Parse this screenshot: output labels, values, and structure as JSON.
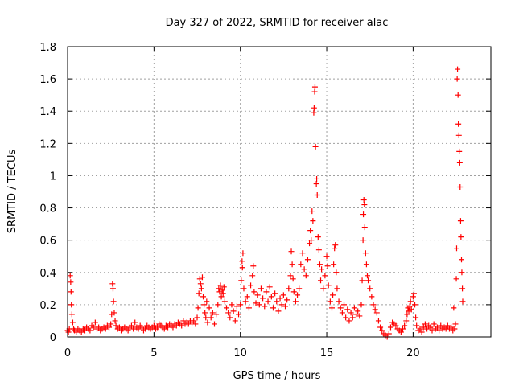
{
  "chart_data": {
    "type": "scatter",
    "title": "Day 327 of 2022, SRMTID for receiver alac",
    "xlabel": "GPS time / hours",
    "ylabel": "SRMTID / TECUs",
    "xlim": [
      0,
      24.5
    ],
    "ylim": [
      0,
      1.8
    ],
    "xticks": [
      0,
      5,
      10,
      15,
      20
    ],
    "xtick_labels": [
      "0",
      "5",
      "10",
      "15",
      "20"
    ],
    "yticks": [
      0,
      0.2,
      0.4,
      0.6,
      0.8,
      1.0,
      1.2,
      1.4,
      1.6,
      1.8
    ],
    "ytick_labels": [
      "0",
      "0.2",
      "0.4",
      "0.6",
      "0.8",
      "1",
      "1.2",
      "1.4",
      "1.6",
      "1.8"
    ],
    "grid": true,
    "marker": "+",
    "marker_color": "#ff0000",
    "series": [
      {
        "name": "SRMTID",
        "points": [
          [
            0.0,
            0.04
          ],
          [
            0.05,
            0.03
          ],
          [
            0.1,
            0.05
          ],
          [
            0.15,
            0.38
          ],
          [
            0.18,
            0.34
          ],
          [
            0.2,
            0.28
          ],
          [
            0.22,
            0.2
          ],
          [
            0.25,
            0.14
          ],
          [
            0.3,
            0.09
          ],
          [
            0.35,
            0.05
          ],
          [
            0.4,
            0.04
          ],
          [
            0.5,
            0.03
          ],
          [
            0.6,
            0.05
          ],
          [
            0.7,
            0.04
          ],
          [
            0.8,
            0.03
          ],
          [
            0.9,
            0.05
          ],
          [
            1.0,
            0.04
          ],
          [
            1.1,
            0.06
          ],
          [
            1.2,
            0.05
          ],
          [
            1.3,
            0.04
          ],
          [
            1.4,
            0.07
          ],
          [
            1.5,
            0.06
          ],
          [
            1.6,
            0.09
          ],
          [
            1.7,
            0.05
          ],
          [
            1.8,
            0.06
          ],
          [
            1.9,
            0.04
          ],
          [
            2.0,
            0.05
          ],
          [
            2.1,
            0.06
          ],
          [
            2.2,
            0.05
          ],
          [
            2.3,
            0.07
          ],
          [
            2.4,
            0.06
          ],
          [
            2.5,
            0.08
          ],
          [
            2.55,
            0.14
          ],
          [
            2.6,
            0.33
          ],
          [
            2.63,
            0.3
          ],
          [
            2.66,
            0.22
          ],
          [
            2.7,
            0.15
          ],
          [
            2.75,
            0.1
          ],
          [
            2.8,
            0.07
          ],
          [
            2.9,
            0.05
          ],
          [
            3.0,
            0.06
          ],
          [
            3.1,
            0.04
          ],
          [
            3.2,
            0.05
          ],
          [
            3.3,
            0.06
          ],
          [
            3.4,
            0.05
          ],
          [
            3.5,
            0.04
          ],
          [
            3.6,
            0.06
          ],
          [
            3.7,
            0.07
          ],
          [
            3.8,
            0.05
          ],
          [
            3.9,
            0.09
          ],
          [
            4.0,
            0.06
          ],
          [
            4.1,
            0.05
          ],
          [
            4.2,
            0.07
          ],
          [
            4.3,
            0.06
          ],
          [
            4.4,
            0.04
          ],
          [
            4.5,
            0.05
          ],
          [
            4.6,
            0.07
          ],
          [
            4.7,
            0.06
          ],
          [
            4.8,
            0.05
          ],
          [
            4.9,
            0.06
          ],
          [
            5.0,
            0.07
          ],
          [
            5.1,
            0.05
          ],
          [
            5.2,
            0.06
          ],
          [
            5.3,
            0.08
          ],
          [
            5.4,
            0.07
          ],
          [
            5.5,
            0.06
          ],
          [
            5.6,
            0.05
          ],
          [
            5.7,
            0.07
          ],
          [
            5.8,
            0.06
          ],
          [
            5.9,
            0.08
          ],
          [
            6.0,
            0.07
          ],
          [
            6.1,
            0.06
          ],
          [
            6.2,
            0.08
          ],
          [
            6.3,
            0.07
          ],
          [
            6.4,
            0.09
          ],
          [
            6.5,
            0.08
          ],
          [
            6.6,
            0.07
          ],
          [
            6.7,
            0.1
          ],
          [
            6.8,
            0.08
          ],
          [
            6.9,
            0.09
          ],
          [
            7.0,
            0.08
          ],
          [
            7.1,
            0.1
          ],
          [
            7.2,
            0.09
          ],
          [
            7.3,
            0.1
          ],
          [
            7.4,
            0.08
          ],
          [
            7.5,
            0.12
          ],
          [
            7.55,
            0.18
          ],
          [
            7.6,
            0.27
          ],
          [
            7.65,
            0.36
          ],
          [
            7.7,
            0.33
          ],
          [
            7.75,
            0.3
          ],
          [
            7.8,
            0.37
          ],
          [
            7.85,
            0.25
          ],
          [
            7.9,
            0.2
          ],
          [
            7.95,
            0.15
          ],
          [
            8.0,
            0.12
          ],
          [
            8.05,
            0.22
          ],
          [
            8.1,
            0.09
          ],
          [
            8.2,
            0.18
          ],
          [
            8.3,
            0.12
          ],
          [
            8.4,
            0.15
          ],
          [
            8.5,
            0.08
          ],
          [
            8.6,
            0.14
          ],
          [
            8.7,
            0.2
          ],
          [
            8.75,
            0.3
          ],
          [
            8.8,
            0.28
          ],
          [
            8.85,
            0.32
          ],
          [
            8.9,
            0.25
          ],
          [
            8.95,
            0.29
          ],
          [
            9.0,
            0.27
          ],
          [
            9.05,
            0.31
          ],
          [
            9.1,
            0.22
          ],
          [
            9.2,
            0.18
          ],
          [
            9.3,
            0.15
          ],
          [
            9.4,
            0.12
          ],
          [
            9.5,
            0.2
          ],
          [
            9.6,
            0.16
          ],
          [
            9.7,
            0.1
          ],
          [
            9.8,
            0.19
          ],
          [
            9.9,
            0.14
          ],
          [
            10.0,
            0.2
          ],
          [
            10.05,
            0.35
          ],
          [
            10.1,
            0.47
          ],
          [
            10.12,
            0.43
          ],
          [
            10.15,
            0.52
          ],
          [
            10.2,
            0.3
          ],
          [
            10.3,
            0.22
          ],
          [
            10.4,
            0.25
          ],
          [
            10.5,
            0.18
          ],
          [
            10.6,
            0.32
          ],
          [
            10.7,
            0.38
          ],
          [
            10.75,
            0.44
          ],
          [
            10.8,
            0.28
          ],
          [
            10.9,
            0.21
          ],
          [
            11.0,
            0.26
          ],
          [
            11.1,
            0.2
          ],
          [
            11.2,
            0.3
          ],
          [
            11.3,
            0.24
          ],
          [
            11.4,
            0.19
          ],
          [
            11.5,
            0.28
          ],
          [
            11.6,
            0.22
          ],
          [
            11.7,
            0.31
          ],
          [
            11.8,
            0.25
          ],
          [
            11.9,
            0.18
          ],
          [
            12.0,
            0.27
          ],
          [
            12.1,
            0.22
          ],
          [
            12.2,
            0.16
          ],
          [
            12.3,
            0.24
          ],
          [
            12.4,
            0.2
          ],
          [
            12.5,
            0.26
          ],
          [
            12.6,
            0.19
          ],
          [
            12.7,
            0.23
          ],
          [
            12.8,
            0.3
          ],
          [
            12.9,
            0.38
          ],
          [
            12.95,
            0.53
          ],
          [
            13.0,
            0.45
          ],
          [
            13.05,
            0.36
          ],
          [
            13.1,
            0.28
          ],
          [
            13.2,
            0.22
          ],
          [
            13.3,
            0.26
          ],
          [
            13.4,
            0.3
          ],
          [
            13.5,
            0.45
          ],
          [
            13.6,
            0.52
          ],
          [
            13.7,
            0.42
          ],
          [
            13.8,
            0.38
          ],
          [
            13.9,
            0.48
          ],
          [
            14.0,
            0.58
          ],
          [
            14.05,
            0.66
          ],
          [
            14.1,
            0.6
          ],
          [
            14.15,
            0.78
          ],
          [
            14.2,
            0.72
          ],
          [
            14.25,
            1.39
          ],
          [
            14.27,
            1.42
          ],
          [
            14.3,
            1.52
          ],
          [
            14.32,
            1.55
          ],
          [
            14.35,
            1.18
          ],
          [
            14.4,
            0.95
          ],
          [
            14.42,
            0.98
          ],
          [
            14.45,
            0.88
          ],
          [
            14.5,
            0.62
          ],
          [
            14.55,
            0.54
          ],
          [
            14.6,
            0.45
          ],
          [
            14.65,
            0.35
          ],
          [
            14.7,
            0.42
          ],
          [
            14.8,
            0.3
          ],
          [
            14.9,
            0.38
          ],
          [
            15.0,
            0.5
          ],
          [
            15.05,
            0.44
          ],
          [
            15.1,
            0.32
          ],
          [
            15.2,
            0.22
          ],
          [
            15.3,
            0.18
          ],
          [
            15.35,
            0.26
          ],
          [
            15.4,
            0.45
          ],
          [
            15.45,
            0.55
          ],
          [
            15.5,
            0.57
          ],
          [
            15.55,
            0.4
          ],
          [
            15.6,
            0.3
          ],
          [
            15.7,
            0.22
          ],
          [
            15.8,
            0.18
          ],
          [
            15.9,
            0.15
          ],
          [
            16.0,
            0.2
          ],
          [
            16.1,
            0.12
          ],
          [
            16.2,
            0.17
          ],
          [
            16.3,
            0.1
          ],
          [
            16.4,
            0.15
          ],
          [
            16.5,
            0.12
          ],
          [
            16.6,
            0.18
          ],
          [
            16.7,
            0.14
          ],
          [
            16.8,
            0.16
          ],
          [
            16.9,
            0.13
          ],
          [
            17.0,
            0.2
          ],
          [
            17.05,
            0.35
          ],
          [
            17.1,
            0.6
          ],
          [
            17.12,
            0.76
          ],
          [
            17.15,
            0.85
          ],
          [
            17.18,
            0.82
          ],
          [
            17.2,
            0.68
          ],
          [
            17.25,
            0.52
          ],
          [
            17.3,
            0.45
          ],
          [
            17.35,
            0.38
          ],
          [
            17.4,
            0.35
          ],
          [
            17.5,
            0.3
          ],
          [
            17.6,
            0.25
          ],
          [
            17.7,
            0.2
          ],
          [
            17.8,
            0.17
          ],
          [
            17.9,
            0.15
          ],
          [
            18.0,
            0.1
          ],
          [
            18.1,
            0.06
          ],
          [
            18.2,
            0.04
          ],
          [
            18.3,
            0.02
          ],
          [
            18.4,
            0.01
          ],
          [
            18.5,
            0.0
          ],
          [
            18.6,
            0.02
          ],
          [
            18.7,
            0.06
          ],
          [
            18.8,
            0.09
          ],
          [
            18.9,
            0.08
          ],
          [
            19.0,
            0.07
          ],
          [
            19.1,
            0.05
          ],
          [
            19.2,
            0.04
          ],
          [
            19.3,
            0.03
          ],
          [
            19.4,
            0.05
          ],
          [
            19.5,
            0.07
          ],
          [
            19.6,
            0.1
          ],
          [
            19.65,
            0.14
          ],
          [
            19.7,
            0.18
          ],
          [
            19.75,
            0.16
          ],
          [
            19.8,
            0.19
          ],
          [
            19.85,
            0.22
          ],
          [
            19.9,
            0.17
          ],
          [
            20.0,
            0.25
          ],
          [
            20.05,
            0.27
          ],
          [
            20.1,
            0.2
          ],
          [
            20.15,
            0.12
          ],
          [
            20.2,
            0.07
          ],
          [
            20.3,
            0.04
          ],
          [
            20.4,
            0.05
          ],
          [
            20.5,
            0.03
          ],
          [
            20.6,
            0.06
          ],
          [
            20.7,
            0.08
          ],
          [
            20.8,
            0.05
          ],
          [
            20.9,
            0.07
          ],
          [
            21.0,
            0.06
          ],
          [
            21.1,
            0.04
          ],
          [
            21.2,
            0.08
          ],
          [
            21.3,
            0.05
          ],
          [
            21.4,
            0.06
          ],
          [
            21.5,
            0.04
          ],
          [
            21.6,
            0.07
          ],
          [
            21.7,
            0.05
          ],
          [
            21.8,
            0.06
          ],
          [
            21.9,
            0.05
          ],
          [
            22.0,
            0.07
          ],
          [
            22.1,
            0.05
          ],
          [
            22.2,
            0.06
          ],
          [
            22.3,
            0.04
          ],
          [
            22.35,
            0.18
          ],
          [
            22.4,
            0.05
          ],
          [
            22.45,
            0.08
          ],
          [
            22.5,
            0.36
          ],
          [
            22.52,
            0.55
          ],
          [
            22.55,
            1.6
          ],
          [
            22.57,
            1.66
          ],
          [
            22.6,
            1.5
          ],
          [
            22.62,
            1.32
          ],
          [
            22.65,
            1.25
          ],
          [
            22.67,
            1.15
          ],
          [
            22.7,
            1.08
          ],
          [
            22.72,
            0.93
          ],
          [
            22.75,
            0.72
          ],
          [
            22.77,
            0.62
          ],
          [
            22.8,
            0.48
          ],
          [
            22.82,
            0.4
          ],
          [
            22.85,
            0.3
          ],
          [
            22.87,
            0.22
          ]
        ]
      }
    ]
  }
}
